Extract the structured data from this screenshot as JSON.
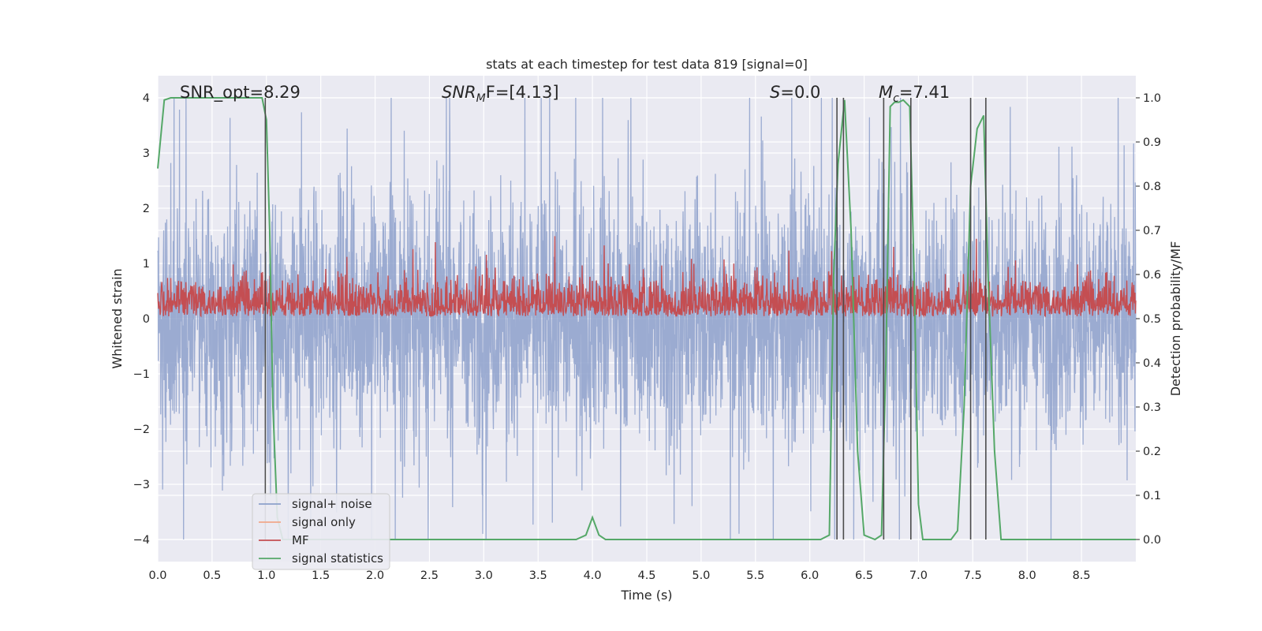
{
  "chart_data": {
    "type": "line",
    "title": "stats at each timestep for test data 819 [signal=0]",
    "xlabel": "Time (s)",
    "ylabel": "Whitened strain",
    "ylabel_right": "Detection probability/MF",
    "xlim": [
      0.0,
      9.0
    ],
    "ylim": [
      -4.4,
      4.4
    ],
    "ylim_right": [
      -0.05,
      1.05
    ],
    "x_ticks": [
      0.0,
      0.5,
      1.0,
      1.5,
      2.0,
      2.5,
      3.0,
      3.5,
      4.0,
      4.5,
      5.0,
      5.5,
      6.0,
      6.5,
      7.0,
      7.5,
      8.0,
      8.5
    ],
    "x_tick_labels": [
      "0.0",
      "0.5",
      "1.0",
      "1.5",
      "2.0",
      "2.5",
      "3.0",
      "3.5",
      "4.0",
      "4.5",
      "5.0",
      "5.5",
      "6.0",
      "6.5",
      "7.0",
      "7.5",
      "8.0",
      "8.5"
    ],
    "y_ticks": [
      -4,
      -3,
      -2,
      -1,
      0,
      1,
      2,
      3,
      4
    ],
    "y_tick_labels": [
      "−4",
      "−3",
      "−2",
      "−1",
      "0",
      "1",
      "2",
      "3",
      "4"
    ],
    "y_ticks_right": [
      0.0,
      0.1,
      0.2,
      0.3,
      0.4,
      0.5,
      0.6,
      0.7,
      0.8,
      0.9,
      1.0
    ],
    "y_tick_labels_right": [
      "0.0",
      "0.1",
      "0.2",
      "0.3",
      "0.4",
      "0.5",
      "0.6",
      "0.7",
      "0.8",
      "0.9",
      "1.0"
    ],
    "grid": true,
    "legend_position": "lower-left",
    "annotations": {
      "snr_opt": "SNR_opt=8.29",
      "snr_mf_base": "SNR",
      "snr_mf_sub": "M",
      "snr_mf_rest": "F=[4.13]",
      "s_italic": "S",
      "s_rest": "=0.0",
      "mc_base": "M",
      "mc_sub": "c",
      "mc_rest": "=7.41"
    },
    "series": [
      {
        "name": "signal+ noise",
        "axis": "left",
        "color": "#8da0cb",
        "style": "noise",
        "amplitude_typical": 1.5,
        "amplitude_max": 4.0
      },
      {
        "name": "signal only",
        "axis": "left",
        "color": "#f0a88a",
        "style": "flat",
        "values": []
      },
      {
        "name": "MF",
        "axis": "right",
        "color": "#c44e52",
        "style": "noise",
        "baseline": 0.5,
        "amplitude_typical": 0.1,
        "amplitude_max": 0.2
      },
      {
        "name": "signal statistics",
        "axis": "right",
        "color": "#55a868",
        "x": [
          0.0,
          0.06,
          0.12,
          0.2,
          0.9,
          0.96,
          1.0,
          1.03,
          1.06,
          1.1,
          1.15,
          1.2,
          3.85,
          3.94,
          4.0,
          4.06,
          4.12,
          6.1,
          6.18,
          6.22,
          6.26,
          6.32,
          6.38,
          6.44,
          6.5,
          6.6,
          6.66,
          6.7,
          6.74,
          6.78,
          6.82,
          6.86,
          6.92,
          6.96,
          7.0,
          7.04,
          7.1,
          7.3,
          7.36,
          7.42,
          7.48,
          7.54,
          7.6,
          7.64,
          7.7,
          7.76,
          7.8,
          9.0
        ],
        "y": [
          0.84,
          0.995,
          1.0,
          1.0,
          1.0,
          1.0,
          0.95,
          0.7,
          0.3,
          0.05,
          0.0,
          0.0,
          0.0,
          0.01,
          0.05,
          0.01,
          0.0,
          0.0,
          0.01,
          0.6,
          0.85,
          0.995,
          0.7,
          0.2,
          0.01,
          0.0,
          0.01,
          0.4,
          0.98,
          0.99,
          0.99,
          0.995,
          0.98,
          0.6,
          0.08,
          0.0,
          0.0,
          0.0,
          0.02,
          0.3,
          0.8,
          0.93,
          0.96,
          0.6,
          0.2,
          0.0,
          0.0,
          0.0
        ]
      }
    ],
    "vertical_lines": [
      0.99,
      6.25,
      6.31,
      6.68,
      6.93,
      7.48,
      7.62
    ]
  }
}
